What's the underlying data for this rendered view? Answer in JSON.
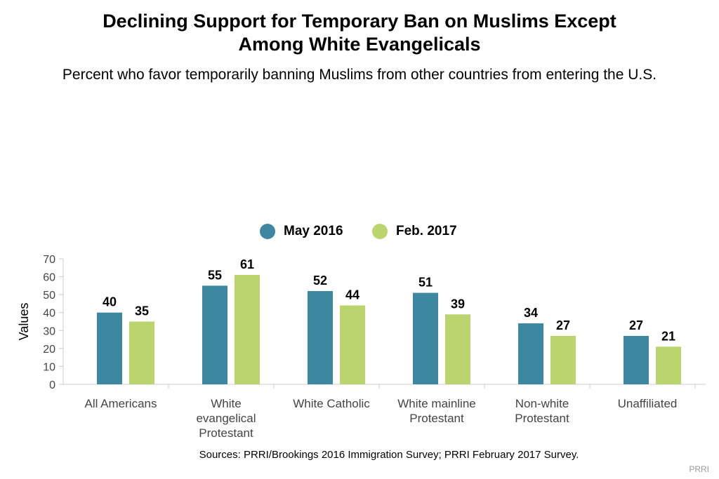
{
  "title_line1": "Declining Support for Temporary Ban on Muslims Except",
  "title_line2": "Among White Evangelicals",
  "subtitle": "Percent who favor temporarily banning Muslims from other countries from entering the U.S.",
  "source": "Sources: PRRI/Brookings 2016 Immigration Survey; PRRI February 2017 Survey.",
  "brand": "PRRI",
  "colors": {
    "may2016": "#3d87a0",
    "feb2017": "#bcd46e"
  },
  "chart_data": {
    "type": "bar",
    "title": "Declining Support for Temporary Ban on Muslims Except Among White Evangelicals",
    "subtitle": "Percent who favor temporarily banning Muslims from other countries from entering the U.S.",
    "xlabel": "",
    "ylabel": "Values",
    "ylim": [
      0,
      70
    ],
    "yticks": [
      0,
      10,
      20,
      30,
      40,
      50,
      60,
      70
    ],
    "grid": false,
    "legend_position": "top-center",
    "categories": [
      [
        "All Americans"
      ],
      [
        "White",
        "evangelical",
        "Protestant"
      ],
      [
        "White Catholic"
      ],
      [
        "White mainline",
        "Protestant"
      ],
      [
        "Non-white",
        "Protestant"
      ],
      [
        "Unaffiliated"
      ]
    ],
    "series": [
      {
        "name": "May 2016",
        "color": "#3d87a0",
        "values": [
          40,
          55,
          52,
          51,
          34,
          27
        ]
      },
      {
        "name": "Feb. 2017",
        "color": "#bcd46e",
        "values": [
          35,
          61,
          44,
          39,
          27,
          21
        ]
      }
    ]
  }
}
